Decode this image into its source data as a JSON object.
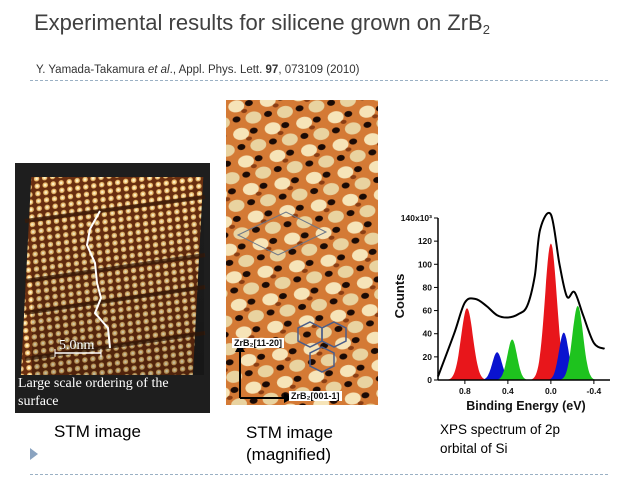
{
  "title": {
    "main": "Experimental results for silicene grown on ZrB",
    "subscript": "2"
  },
  "citation": {
    "authors": "Y. Yamada-Takamura",
    "etal": "et al",
    "journal": "., Appl. Phys. Lett. ",
    "volume": "97",
    "rest": ", 073109 (2010)"
  },
  "panels": {
    "large": {
      "scale": "5.0nm",
      "caption": "Large scale ordering of the surface",
      "label": "STM image"
    },
    "magnified": {
      "dir1": "ZrB₂[11-20]",
      "dir2": "ZrB₂[001-1]",
      "label": "STM image (magnified)"
    }
  },
  "xps": {
    "caption": "XPS spectrum of 2p orbital of Si"
  },
  "chart_data": {
    "type": "line",
    "ylabel": "Counts",
    "xlabel": "Binding Energy (eV)",
    "xlim": [
      1.05,
      -0.55
    ],
    "ylim": [
      0,
      140
    ],
    "x_ticks": [
      "0.8",
      "0.4",
      "0.0",
      "-0.4"
    ],
    "x_tick_values": [
      0.8,
      0.4,
      0.0,
      -0.4
    ],
    "y_ticks": [
      "0",
      "20",
      "40",
      "60",
      "80",
      "100",
      "120",
      "140x10³"
    ],
    "y_tick_values": [
      0,
      20,
      40,
      60,
      80,
      100,
      120,
      140
    ],
    "series": [
      {
        "name": "",
        "values": [
          [
            1.05,
            3
          ],
          [
            0.9,
            40
          ],
          [
            0.8,
            67
          ],
          [
            0.7,
            70
          ],
          [
            0.6,
            64
          ],
          [
            0.5,
            56
          ],
          [
            0.4,
            54
          ],
          [
            0.3,
            57
          ],
          [
            0.22,
            64
          ],
          [
            0.15,
            90
          ],
          [
            0.1,
            130
          ],
          [
            0.0,
            143
          ],
          [
            -0.08,
            100
          ],
          [
            -0.15,
            72
          ],
          [
            -0.22,
            76
          ],
          [
            -0.3,
            56
          ],
          [
            -0.4,
            32
          ],
          [
            -0.5,
            27
          ]
        ],
        "color": "#000000"
      },
      {
        "name": "",
        "peak": 0.78,
        "amplitude": 62,
        "width": 0.055,
        "color": "#e8161b"
      },
      {
        "name": "",
        "peak": 0.5,
        "amplitude": 24,
        "width": 0.045,
        "color": "#0a13cf"
      },
      {
        "name": "",
        "peak": 0.36,
        "amplitude": 35,
        "width": 0.045,
        "color": "#1ec31e"
      },
      {
        "name": "",
        "peak": 0.0,
        "amplitude": 118,
        "width": 0.055,
        "color": "#e8161b"
      },
      {
        "name": "",
        "peak": -0.12,
        "amplitude": 41,
        "width": 0.045,
        "color": "#0a13cf"
      },
      {
        "name": "",
        "peak": -0.25,
        "amplitude": 64,
        "width": 0.05,
        "color": "#1ec31e"
      }
    ]
  }
}
